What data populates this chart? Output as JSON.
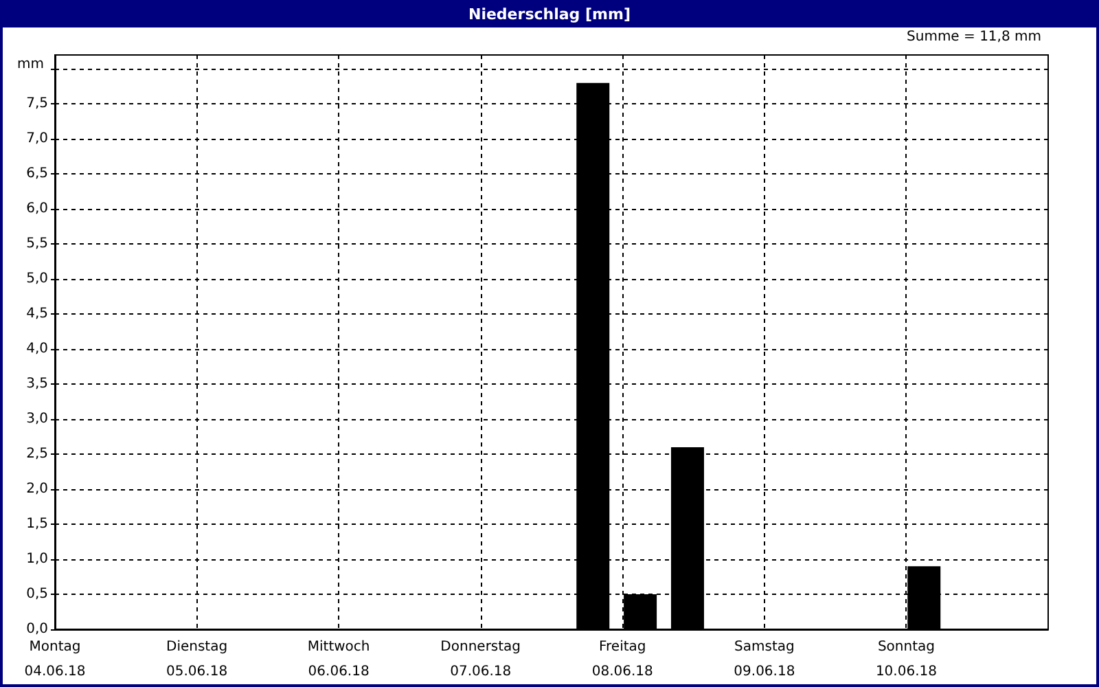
{
  "chart_data": {
    "type": "bar",
    "title": "Niederschlag [mm]",
    "ylabel": "mm",
    "annotations": [
      "Summe = 11,8 mm"
    ],
    "x": [
      "--06-07T19:00",
      "--06-08T03:00",
      "--06-08T11:00",
      "--06-10T03:00"
    ],
    "values": [
      7.8,
      0.5,
      2.6,
      0.9
    ],
    "color": "#000000",
    "xlim": [
      "--06-04",
      "--06-11"
    ],
    "xticks": [
      {
        "value": "--06-04",
        "label": "Montag\n04.06.18"
      },
      {
        "value": "--06-05",
        "label": "Dienstag\n05.06.18"
      },
      {
        "value": "--06-06",
        "label": "Mittwoch\n06.06.18"
      },
      {
        "value": "--06-07",
        "label": "Donnerstag\n07.06.18"
      },
      {
        "value": "--06-08",
        "label": "Freitag\n08.06.18"
      },
      {
        "value": "--06-09",
        "label": "Samstag\n09.06.18"
      },
      {
        "value": "--06-10",
        "label": "Sonntag\n10.06.18"
      }
    ],
    "ylim": [
      0,
      8.2
    ],
    "yticks": [
      {
        "value": 0,
        "label": "0,0"
      },
      {
        "value": 0.5,
        "label": "0,5"
      },
      {
        "value": 1,
        "label": "1,0"
      },
      {
        "value": 1.5,
        "label": "1,5"
      },
      {
        "value": 2,
        "label": "2,0"
      },
      {
        "value": 2.5,
        "label": "2,5"
      },
      {
        "value": 3,
        "label": "3,0"
      },
      {
        "value": 3.5,
        "label": "3,5"
      },
      {
        "value": 4,
        "label": "4,0"
      },
      {
        "value": 4.5,
        "label": "4,5"
      },
      {
        "value": 5,
        "label": "5,0"
      },
      {
        "value": 5.5,
        "label": "5,5"
      },
      {
        "value": 6,
        "label": "6,0"
      },
      {
        "value": 6.5,
        "label": "6,5"
      },
      {
        "value": 7,
        "label": "7,0"
      },
      {
        "value": 7.5,
        "label": "7,5"
      },
      {
        "value": 8,
        "label": null
      }
    ],
    "grid": true
  }
}
